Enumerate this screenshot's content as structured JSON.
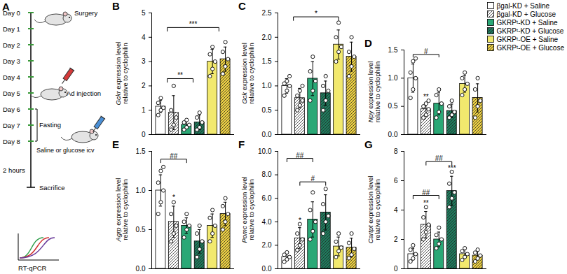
{
  "diagram": {
    "title": "A",
    "days": [
      "Day 0",
      "Day 1",
      "Day 2",
      "Day 3",
      "Day 4",
      "Day 5",
      "Day 6",
      "Day 7",
      "Day 8"
    ],
    "events": [
      {
        "text": "Surgery",
        "day": 0
      },
      {
        "text": "Ad injection",
        "day": 5
      },
      {
        "text": "Fasting",
        "from": 6,
        "to": 8
      },
      {
        "text": "Saline or glucose icv",
        "day": 8
      }
    ],
    "interval": "2 hours",
    "end": "Sacrifice",
    "assay": "RT-qPCR"
  },
  "chart_data": [
    {
      "type": "bar",
      "title": "B",
      "ylabel": [
        "Gckr expression level",
        "relative to cyclophilin"
      ],
      "ylim": [
        0,
        5
      ],
      "yticks": [
        0,
        1,
        2,
        3,
        4,
        5
      ],
      "tick_labels": "y",
      "series": [
        {
          "name": "βgal-KD + Saline",
          "color": "#ffffff",
          "line_style": "solid",
          "values": [
            1.15
          ],
          "error": [
            0.25
          ],
          "points": [
            [
              0.8,
              1.0,
              1.1,
              1.3,
              1.5
            ]
          ]
        },
        {
          "name": "βgal-KD + Glucose",
          "color": "#ffffff",
          "line_style": "hatched",
          "values": [
            0.9
          ],
          "error": [
            0.7
          ],
          "points": [
            [
              0.2,
              0.4,
              0.7,
              1.0,
              2.0
            ]
          ]
        },
        {
          "name": "GKRPᵗ-KD + Saline",
          "color": "#2aa876",
          "line_style": "solid",
          "values": [
            0.4
          ],
          "error": [
            0.15
          ],
          "points": [
            [
              0.2,
              0.3,
              0.4,
              0.5,
              0.6
            ]
          ]
        },
        {
          "name": "GKRPᵗ-KD + Glucose",
          "color": "#1f7a5c",
          "line_style": "hatched",
          "values": [
            0.5
          ],
          "error": [
            0.3
          ],
          "points": [
            [
              0.2,
              0.3,
              0.5,
              0.7,
              0.9
            ]
          ]
        },
        {
          "name": "GKRPᵗ-OE + Saline",
          "color": "#f2e96e",
          "line_style": "solid",
          "values": [
            3.0
          ],
          "error": [
            0.5
          ],
          "points": [
            [
              2.4,
              2.7,
              3.0,
              3.3,
              3.6
            ]
          ]
        },
        {
          "name": "GKRPᵗ-OE + Glucose",
          "color": "#ecd043",
          "line_style": "hatched",
          "values": [
            3.1
          ],
          "error": [
            0.5
          ],
          "points": [
            [
              2.5,
              2.8,
              3.1,
              3.4,
              3.8
            ]
          ]
        }
      ],
      "annotations": [
        {
          "text": "***",
          "x1": 0.5,
          "x2": 4.5,
          "y": 4.4
        },
        {
          "text": "**",
          "x1": 0.5,
          "x2": 2.5,
          "y": 2.3
        }
      ]
    },
    {
      "type": "bar",
      "title": "C",
      "ylabel": [
        "Gck expression level",
        "relative to cyclophilin"
      ],
      "ylim": [
        0,
        2.5
      ],
      "yticks": [
        {
          "value": 0,
          "label": "0.0"
        },
        0.5,
        {
          "value": 1,
          "label": "1.0"
        },
        1.5,
        {
          "value": 2,
          "label": "2.0"
        },
        2.5
      ],
      "tick_labels": "y",
      "series": [
        {
          "name": "βgal-KD + Saline",
          "color": "#ffffff",
          "line_style": "solid",
          "values": [
            1.0
          ],
          "error": [
            0.15
          ],
          "points": [
            [
              0.8,
              0.9,
              1.0,
              1.05,
              1.1,
              1.2
            ]
          ]
        },
        {
          "name": "βgal-KD + Glucose",
          "color": "#ffffff",
          "line_style": "hatched",
          "values": [
            0.75
          ],
          "error": [
            0.2
          ],
          "points": [
            [
              0.5,
              0.6,
              0.7,
              0.8,
              0.9,
              1.0
            ]
          ]
        },
        {
          "name": "GKRPᵗ-KD + Saline",
          "color": "#2aa876",
          "line_style": "solid",
          "values": [
            1.15
          ],
          "error": [
            0.35
          ],
          "points": [
            [
              0.7,
              0.9,
              1.1,
              1.3,
              1.6
            ]
          ]
        },
        {
          "name": "GKRPᵗ-KD + Glucose",
          "color": "#1f7a5c",
          "line_style": "hatched",
          "values": [
            0.85
          ],
          "error": [
            0.25
          ],
          "points": [
            [
              0.5,
              0.7,
              0.9,
              1.0,
              1.2
            ]
          ]
        },
        {
          "name": "GKRPᵗ-OE + Saline",
          "color": "#f2e96e",
          "line_style": "solid",
          "values": [
            1.85
          ],
          "error": [
            0.3
          ],
          "points": [
            [
              1.5,
              1.7,
              1.8,
              2.0,
              2.3
            ]
          ]
        },
        {
          "name": "GKRPᵗ-OE + Glucose",
          "color": "#ecd043",
          "line_style": "hatched",
          "values": [
            1.6
          ],
          "error": [
            0.3
          ],
          "points": [
            [
              1.2,
              1.4,
              1.6,
              1.7,
              2.0
            ]
          ]
        }
      ],
      "annotations": [
        {
          "text": "*",
          "x1": 0.5,
          "x2": 4,
          "y": 2.42
        }
      ]
    },
    {
      "type": "bar",
      "title": "D",
      "ylabel": [
        "Npy expression level",
        "relative to cyclophilin"
      ],
      "legend": "top right",
      "ylim": [
        0,
        1.5
      ],
      "yticks": [
        {
          "value": 0,
          "label": "0.0"
        },
        0.5,
        {
          "value": 1,
          "label": "1.0"
        },
        1.5
      ],
      "tick_labels": "y",
      "series": [
        {
          "name": "βgal-KD + Saline",
          "color": "#ffffff",
          "line_style": "solid",
          "values": [
            1.0
          ],
          "error": [
            0.25
          ],
          "points": [
            [
              0.65,
              0.8,
              1.0,
              1.1,
              1.3,
              1.35
            ]
          ]
        },
        {
          "name": "βgal-KD + Glucose",
          "color": "#ffffff",
          "line_style": "hatched",
          "values": [
            0.45
          ],
          "error": [
            0.1
          ],
          "points": [
            [
              0.3,
              0.35,
              0.45,
              0.5,
              0.55,
              0.6
            ]
          ]
        },
        {
          "name": "GKRPᵗ-KD + Saline",
          "color": "#2aa876",
          "line_style": "solid",
          "values": [
            0.55
          ],
          "error": [
            0.2
          ],
          "points": [
            [
              0.3,
              0.4,
              0.55,
              0.7,
              0.8
            ]
          ]
        },
        {
          "name": "GKRPᵗ-KD + Glucose",
          "color": "#1f7a5c",
          "line_style": "hatched",
          "values": [
            0.42
          ],
          "error": [
            0.12
          ],
          "points": [
            [
              0.3,
              0.35,
              0.4,
              0.5,
              0.6
            ]
          ]
        },
        {
          "name": "GKRPᵗ-OE + Saline",
          "color": "#f2e96e",
          "line_style": "solid",
          "values": [
            0.9
          ],
          "error": [
            0.15
          ],
          "points": [
            [
              0.7,
              0.8,
              0.9,
              1.0,
              1.1
            ]
          ]
        },
        {
          "name": "GKRPᵗ-OE + Glucose",
          "color": "#ecd043",
          "line_style": "hatched",
          "values": [
            0.65
          ],
          "error": [
            0.25
          ],
          "points": [
            [
              0.3,
              0.5,
              0.6,
              0.8,
              1.0
            ]
          ]
        }
      ],
      "annotations": [
        {
          "text": "#",
          "x1": 0,
          "x2": 2,
          "y": 1.42
        },
        {
          "text": "**",
          "x": 1,
          "y": 0.62
        }
      ]
    },
    {
      "type": "bar",
      "title": "E",
      "ylabel": [
        "Agrp expression level",
        "relative to cyclophilin"
      ],
      "ylim": [
        0,
        1.5
      ],
      "yticks": [
        {
          "value": 0,
          "label": "0.0"
        },
        0.5,
        {
          "value": 1,
          "label": "1.0"
        },
        1.5
      ],
      "tick_labels": "y",
      "series": [
        {
          "name": "βgal-KD + Saline",
          "color": "#ffffff",
          "line_style": "solid",
          "values": [
            1.0
          ],
          "error": [
            0.2
          ],
          "points": [
            [
              0.7,
              0.85,
              1.0,
              1.1,
              1.25,
              1.3
            ]
          ]
        },
        {
          "name": "βgal-KD + Glucose",
          "color": "#ffffff",
          "line_style": "hatched",
          "values": [
            0.6
          ],
          "error": [
            0.2
          ],
          "points": [
            [
              0.35,
              0.45,
              0.55,
              0.7,
              0.85
            ]
          ]
        },
        {
          "name": "GKRPᵗ-KD + Saline",
          "color": "#2aa876",
          "line_style": "solid",
          "values": [
            0.55
          ],
          "error": [
            0.1
          ],
          "points": [
            [
              0.4,
              0.5,
              0.55,
              0.6,
              0.7
            ]
          ]
        },
        {
          "name": "GKRPᵗ-KD + Glucose",
          "color": "#1f7a5c",
          "line_style": "hatched",
          "values": [
            0.35
          ],
          "error": [
            0.15
          ],
          "points": [
            [
              0.15,
              0.25,
              0.35,
              0.45,
              0.55
            ]
          ]
        },
        {
          "name": "GKRPᵗ-OE + Saline",
          "color": "#f2e96e",
          "line_style": "solid",
          "values": [
            0.55
          ],
          "error": [
            0.15
          ],
          "points": [
            [
              0.35,
              0.45,
              0.55,
              0.65,
              0.75
            ]
          ]
        },
        {
          "name": "GKRPᵗ-OE + Glucose",
          "color": "#ecd043",
          "line_style": "hatched",
          "values": [
            0.7
          ],
          "error": [
            0.15
          ],
          "points": [
            [
              0.5,
              0.6,
              0.7,
              0.8,
              0.9
            ]
          ]
        }
      ],
      "annotations": [
        {
          "text": "##",
          "x1": 0,
          "x2": 2,
          "y": 1.4
        },
        {
          "text": "*",
          "x": 1,
          "y": 0.88
        }
      ]
    },
    {
      "type": "bar",
      "title": "F",
      "ylabel": [
        "Pomc expression level",
        "relative to cyclophilin"
      ],
      "ylim": [
        0,
        10
      ],
      "yticks": [
        {
          "value": 0,
          "label": "0.0"
        },
        {
          "value": 2,
          "label": "2.0"
        },
        {
          "value": 4,
          "label": "4.0"
        },
        {
          "value": 6,
          "label": "6.0"
        },
        {
          "value": 8,
          "label": "8.0"
        },
        {
          "value": 10,
          "label": "10.0"
        }
      ],
      "tick_labels": "y",
      "series": [
        {
          "name": "βgal-KD + Saline",
          "color": "#ffffff",
          "line_style": "solid",
          "values": [
            1.0
          ],
          "error": [
            0.3
          ],
          "points": [
            [
              0.6,
              0.8,
              1.0,
              1.2,
              1.4
            ]
          ]
        },
        {
          "name": "βgal-KD + Glucose",
          "color": "#ffffff",
          "line_style": "hatched",
          "values": [
            2.6
          ],
          "error": [
            0.9
          ],
          "points": [
            [
              1.6,
              2.0,
              2.5,
              3.0,
              3.8
            ]
          ]
        },
        {
          "name": "GKRPᵗ-KD + Saline",
          "color": "#2aa876",
          "line_style": "solid",
          "values": [
            4.2
          ],
          "error": [
            1.5
          ],
          "points": [
            [
              2.5,
              3.2,
              4.0,
              5.0,
              6.5
            ]
          ]
        },
        {
          "name": "GKRPᵗ-KD + Glucose",
          "color": "#1f7a5c",
          "line_style": "hatched",
          "values": [
            4.8
          ],
          "error": [
            1.5
          ],
          "points": [
            [
              3.0,
              4.0,
              4.5,
              5.5,
              6.8
            ]
          ]
        },
        {
          "name": "GKRPᵗ-OE + Saline",
          "color": "#f2e96e",
          "line_style": "solid",
          "values": [
            1.9
          ],
          "error": [
            0.8
          ],
          "points": [
            [
              1.0,
              1.5,
              1.8,
              2.3,
              3.0
            ]
          ]
        },
        {
          "name": "GKRPᵗ-OE + Glucose",
          "color": "#ecd043",
          "line_style": "hatched",
          "values": [
            1.8
          ],
          "error": [
            0.8
          ],
          "points": [
            [
              0.9,
              1.2,
              1.7,
              2.2,
              3.0
            ]
          ]
        }
      ],
      "annotations": [
        {
          "text": "##",
          "x1": 0,
          "x2": 2,
          "y": 9.4
        },
        {
          "text": "#",
          "x1": 1,
          "x2": 3,
          "y": 7.4
        },
        {
          "text": "*",
          "x": 1,
          "y": 3.9
        }
      ]
    },
    {
      "type": "bar",
      "title": "G",
      "ylabel": [
        "Cartpt expression level",
        "relative to cyclophilin"
      ],
      "ylim": [
        0,
        8
      ],
      "yticks": [
        0,
        2,
        4,
        6,
        8
      ],
      "tick_labels": "y",
      "series": [
        {
          "name": "βgal-KD + Saline",
          "color": "#ffffff",
          "line_style": "solid",
          "values": [
            1.0
          ],
          "error": [
            0.4
          ],
          "points": [
            [
              0.5,
              0.7,
              1.0,
              1.3,
              1.6
            ]
          ]
        },
        {
          "name": "βgal-KD + Glucose",
          "color": "#ffffff",
          "line_style": "hatched",
          "values": [
            3.0
          ],
          "error": [
            0.9
          ],
          "points": [
            [
              2.0,
              2.5,
              3.0,
              3.5,
              4.2
            ]
          ]
        },
        {
          "name": "GKRPᵗ-KD + Saline",
          "color": "#2aa876",
          "line_style": "solid",
          "values": [
            2.0
          ],
          "error": [
            0.5
          ],
          "points": [
            [
              1.4,
              1.7,
              2.0,
              2.3,
              2.8
            ]
          ]
        },
        {
          "name": "GKRPᵗ-KD + Glucose",
          "color": "#1f7a5c",
          "line_style": "hatched",
          "values": [
            5.3
          ],
          "error": [
            1.0
          ],
          "points": [
            [
              4.2,
              4.8,
              5.2,
              5.8,
              6.6
            ]
          ]
        },
        {
          "name": "GKRPᵗ-OE + Saline",
          "color": "#f2e96e",
          "line_style": "solid",
          "values": [
            1.0
          ],
          "error": [
            0.3
          ],
          "points": [
            [
              0.6,
              0.8,
              1.0,
              1.2,
              1.4
            ]
          ]
        },
        {
          "name": "GKRPᵗ-OE + Glucose",
          "color": "#ecd043",
          "line_style": "hatched",
          "values": [
            0.9
          ],
          "error": [
            0.3
          ],
          "points": [
            [
              0.5,
              0.7,
              0.9,
              1.1,
              1.3
            ]
          ]
        }
      ],
      "annotations": [
        {
          "text": "##",
          "x1": 0,
          "x2": 2,
          "y": 5.0
        },
        {
          "text": "##",
          "x1": 1,
          "x2": 3,
          "y": 7.3
        },
        {
          "text": "**",
          "x": 1,
          "y": 4.3
        },
        {
          "text": "***",
          "x": 3,
          "y": 6.7
        }
      ]
    }
  ]
}
